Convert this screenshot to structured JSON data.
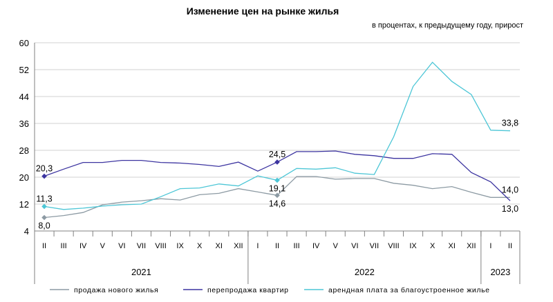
{
  "chart_data": {
    "type": "line",
    "title": "Изменение цен на рынке жилья",
    "subtitle": "в процентах, к предыдущему году, прирост",
    "ylim": [
      4,
      60
    ],
    "yticks": [
      4,
      12,
      20,
      28,
      36,
      44,
      52,
      60
    ],
    "grid": "horizontal",
    "legend_position": "bottom",
    "categories": [
      "II",
      "III",
      "IV",
      "V",
      "VI",
      "VII",
      "VIII",
      "IX",
      "X",
      "XI",
      "XII",
      "I",
      "II",
      "III",
      "IV",
      "V",
      "VI",
      "VII",
      "VIII",
      "IX",
      "X",
      "XI",
      "XII",
      "I",
      "II"
    ],
    "years": [
      {
        "label": "2021",
        "start": 0,
        "end": 10
      },
      {
        "label": "2022",
        "start": 11,
        "end": 22
      },
      {
        "label": "2023",
        "start": 23,
        "end": 24
      }
    ],
    "colors": {
      "new_housing": "#8c9aa3",
      "resale": "#3c34a0",
      "rent": "#4cc6d6",
      "grid": "#d0d0d0",
      "axis": "#808080"
    },
    "series": [
      {
        "key": "new_housing",
        "name": "продажа нового жилья",
        "values": [
          8.0,
          8.6,
          9.5,
          11.8,
          12.6,
          13.0,
          13.6,
          13.2,
          14.8,
          15.2,
          16.6,
          15.6,
          14.6,
          20.2,
          20.2,
          19.4,
          19.6,
          19.6,
          18.2,
          17.6,
          16.6,
          17.2,
          15.5,
          14.0,
          14.0
        ],
        "labels": [
          {
            "index": 0,
            "text": "8,0",
            "pos": "below"
          },
          {
            "index": 12,
            "text": "14,6",
            "pos": "below"
          },
          {
            "index": 24,
            "text": "14,0",
            "pos": "above"
          }
        ]
      },
      {
        "key": "resale",
        "name": "перепродажа квартир",
        "values": [
          20.3,
          22.4,
          24.4,
          24.4,
          25.0,
          25.0,
          24.4,
          24.2,
          23.8,
          23.2,
          24.5,
          21.8,
          24.5,
          27.6,
          27.6,
          27.8,
          26.8,
          26.4,
          25.6,
          25.6,
          27.0,
          26.8,
          21.4,
          18.6,
          13.0
        ],
        "labels": [
          {
            "index": 0,
            "text": "20,3",
            "pos": "above"
          },
          {
            "index": 12,
            "text": "24,5",
            "pos": "above"
          },
          {
            "index": 24,
            "text": "13,0",
            "pos": "below"
          }
        ]
      },
      {
        "key": "rent",
        "name": "арендная плата за благоустроенное  жилье",
        "values": [
          11.3,
          10.4,
          10.8,
          11.4,
          11.8,
          12.0,
          14.2,
          16.6,
          16.8,
          18.0,
          17.4,
          20.4,
          19.1,
          22.6,
          22.4,
          22.8,
          21.2,
          20.8,
          32.0,
          47.0,
          54.2,
          48.5,
          44.6,
          34.0,
          33.8
        ],
        "labels": [
          {
            "index": 0,
            "text": "11,3",
            "pos": "above"
          },
          {
            "index": 12,
            "text": "19,1",
            "pos": "below"
          },
          {
            "index": 24,
            "text": "33,8",
            "pos": "above"
          }
        ]
      }
    ]
  }
}
